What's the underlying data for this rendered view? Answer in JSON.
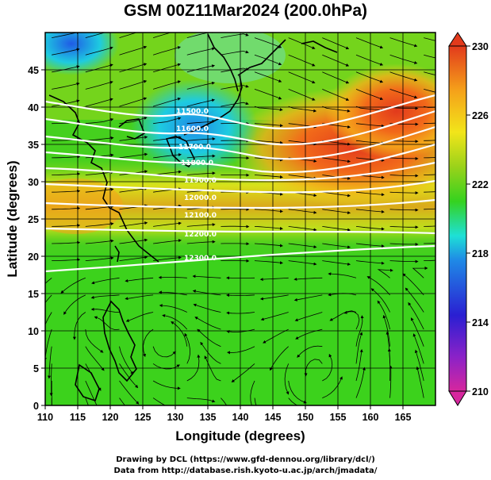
{
  "title": "GSM 00Z11Mar2024 (200.0hPa)",
  "x_axis": {
    "label": "Longitude (degrees)",
    "ticks": [
      "110",
      "115",
      "120",
      "125",
      "130",
      "135",
      "140",
      "145",
      "150",
      "155",
      "160",
      "165"
    ]
  },
  "y_axis": {
    "label": "Latitude  (degrees)",
    "ticks": [
      "0",
      "5",
      "10",
      "15",
      "20",
      "25",
      "30",
      "35",
      "40",
      "45"
    ]
  },
  "colorbar": {
    "ticks": [
      "210",
      "214",
      "218",
      "222",
      "226",
      "230"
    ]
  },
  "contour_labels": [
    "11500.0",
    "11600.0",
    "11700.0",
    "11800.0",
    "11900.0",
    "12000.0",
    "12100.0",
    "12200.0",
    "12300.0"
  ],
  "credits": {
    "line1": "Drawing by DCL (https://www.gfd-dennou.org/library/dcl/)",
    "line2": "Data from http://database.rish.kyoto-u.ac.jp/arch/jmadata/"
  },
  "chart_data": {
    "type": "heatmap",
    "title": "GSM 00Z11Mar2024 (200.0hPa)",
    "xlabel": "Longitude (degrees)",
    "ylabel": "Latitude  (degrees)",
    "xlim": [
      110,
      170
    ],
    "ylim": [
      0,
      50
    ],
    "color_range": [
      210,
      230
    ],
    "colormap": [
      "#d6279e",
      "#2a1fd2",
      "#1f8ae6",
      "#1ee0d6",
      "#35d21f",
      "#9ad21a",
      "#f2e51a",
      "#f5a21a",
      "#e23a1c"
    ],
    "fields": [
      "filled color field",
      "streamlines",
      "white height contours"
    ],
    "grid": true
  },
  "colors": {
    "contour": "#ffffff",
    "coastline": "#000000",
    "streamline": "#000000"
  }
}
